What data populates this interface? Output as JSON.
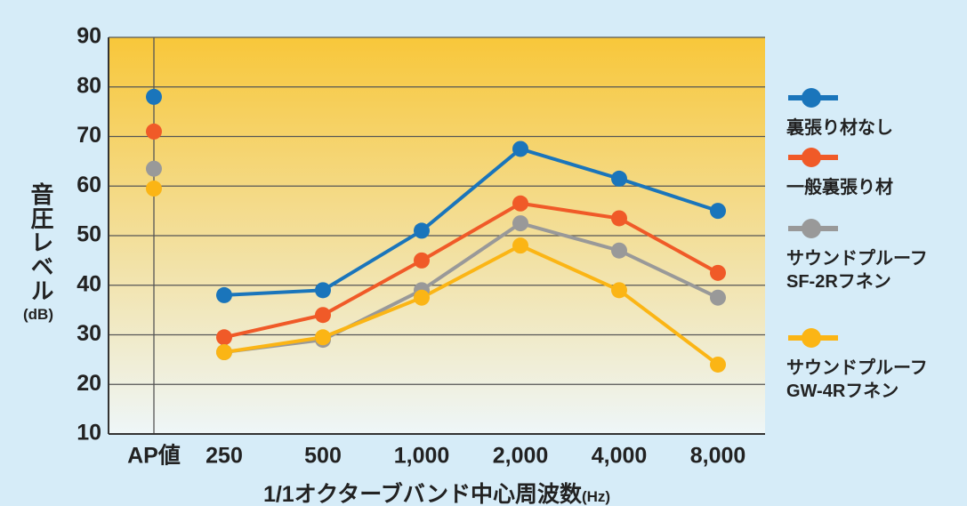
{
  "chart_data": {
    "type": "line",
    "categories": [
      "AP値",
      "250",
      "500",
      "1,000",
      "2,000",
      "4,000",
      "8,000"
    ],
    "x_label": "1/1オクターブバンド中心周波数",
    "x_unit": "(Hz)",
    "y_label": "音圧レベル",
    "y_unit": "(dB)",
    "ylim": [
      10,
      90
    ],
    "yticks": [
      10,
      20,
      30,
      40,
      50,
      60,
      70,
      80,
      90
    ],
    "grid": true,
    "series": [
      {
        "name": "裏張り材なし",
        "color": "#1a75bb",
        "values": [
          78,
          38,
          39,
          51,
          67.5,
          61.5,
          55
        ]
      },
      {
        "name": "一般裏張り材",
        "color": "#f05a28",
        "values": [
          71,
          29.5,
          34,
          45,
          56.5,
          53.5,
          42.5
        ]
      },
      {
        "name": "サウンドプルーフ\nSF-2Rフネン",
        "color": "#999999",
        "values": [
          63.5,
          26.5,
          29,
          39,
          52.5,
          47,
          37.5
        ]
      },
      {
        "name": "サウンドプルーフ\nGW-4Rフネン",
        "color": "#fbb515",
        "values": [
          59.5,
          26.5,
          29.5,
          37.5,
          48,
          39,
          24
        ]
      }
    ]
  }
}
